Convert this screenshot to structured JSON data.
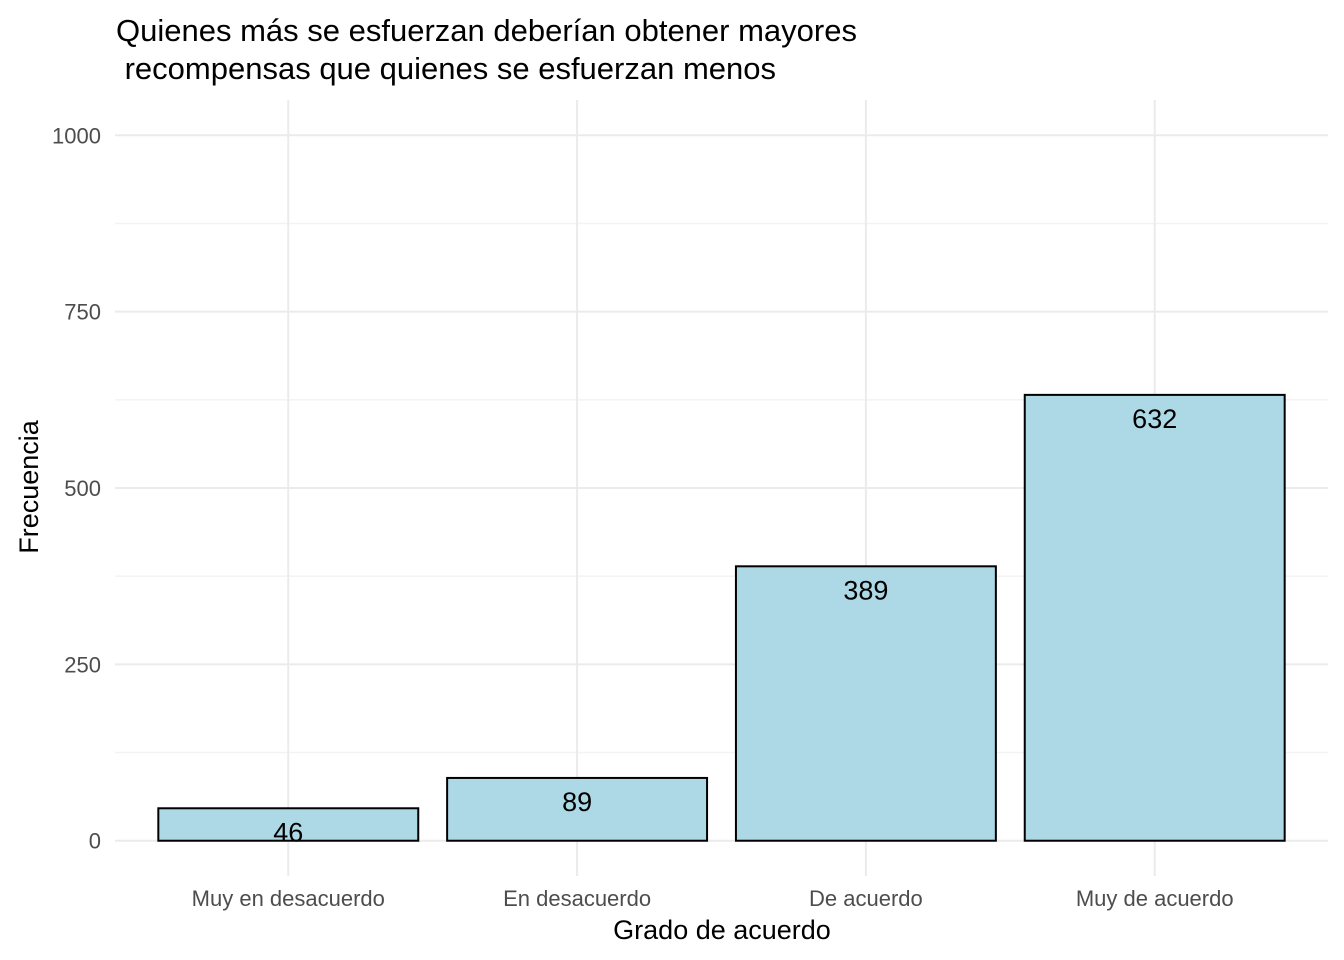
{
  "chart_data": {
    "type": "bar",
    "title_lines": [
      "Quienes más se esfuerzan deberían obtener mayores",
      " recompensas que quienes se esfuerzan menos"
    ],
    "xlabel": "Grado de acuerdo",
    "ylabel": "Frecuencia",
    "categories": [
      "Muy en desacuerdo",
      "En desacuerdo",
      "De acuerdo",
      "Muy de acuerdo"
    ],
    "values": [
      46,
      89,
      389,
      632
    ],
    "data_labels": [
      "46",
      "89",
      "389",
      "632"
    ],
    "y_ticks": [
      0,
      250,
      500,
      750,
      1000
    ],
    "y_tick_labels": [
      "0",
      "250",
      "500",
      "750",
      "1000"
    ],
    "ylim": [
      -50,
      1050
    ],
    "bar_color": "#ADD8E6",
    "bar_border_color": "#000000",
    "grid": true,
    "legend": "none"
  }
}
